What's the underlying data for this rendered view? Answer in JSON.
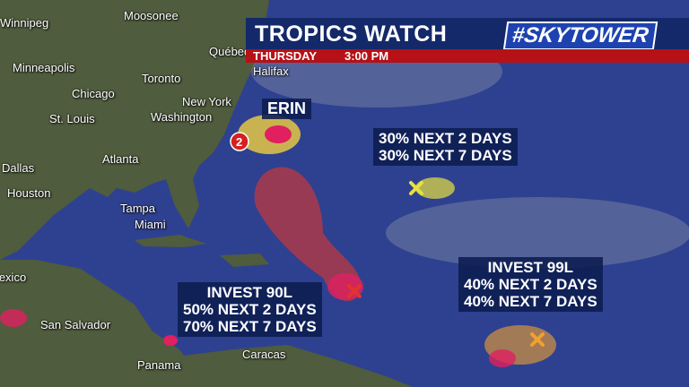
{
  "header": {
    "title": "TROPICS WATCH",
    "day": "THURSDAY",
    "time": "3:00 PM",
    "logo": "#SKYTOWER"
  },
  "cities": [
    "Winnipeg",
    "Moosonee",
    "Québec",
    "Halifax",
    "Minneapolis",
    "Toronto",
    "Chicago",
    "New York",
    "Washington",
    "St. Louis",
    "Atlanta",
    "Dallas",
    "Houston",
    "Tampa",
    "Miami",
    "Mexico",
    "San Salvador",
    "Panama",
    "Caracas"
  ],
  "storms": {
    "erin": {
      "name": "ERIN",
      "category": "2"
    },
    "system_center": {
      "line1": "30% NEXT 2 DAYS",
      "line2": "30% NEXT 7 DAYS"
    },
    "invest99": {
      "name": "INVEST 99L",
      "line1": "40% NEXT 2 DAYS",
      "line2": "40% NEXT 7 DAYS"
    },
    "invest90": {
      "name": "INVEST 90L",
      "line1": "50% NEXT 2 DAYS",
      "line2": "70% NEXT 7 DAYS"
    }
  },
  "colors": {
    "ocean": "#2e4190",
    "land": "#4d5a3c",
    "high": "#e0352d",
    "medium": "#f0a030",
    "low": "#e8e040"
  }
}
